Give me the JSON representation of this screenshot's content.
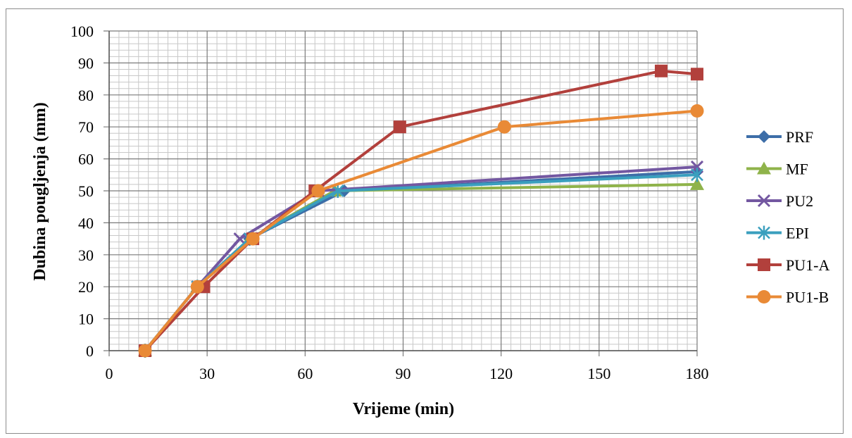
{
  "chart_data": {
    "type": "line",
    "xlabel": "Vrijeme (min)",
    "ylabel": "Dubina pougljenja (mm)",
    "xlim": [
      0,
      180
    ],
    "ylim": [
      0,
      100
    ],
    "xticks": [
      "0",
      "30",
      "60",
      "90",
      "120",
      "150",
      "180"
    ],
    "yticks": [
      "0",
      "10",
      "20",
      "30",
      "40",
      "50",
      "60",
      "70",
      "80",
      "90",
      "100"
    ],
    "grid": true,
    "legend_position": "right",
    "series": [
      {
        "name": "PRF",
        "color": "#3d6ea8",
        "marker": "diamond",
        "points": [
          [
            11,
            0
          ],
          [
            27,
            20
          ],
          [
            43,
            35
          ],
          [
            72,
            50
          ],
          [
            180,
            56
          ]
        ]
      },
      {
        "name": "MF",
        "color": "#8fb34a",
        "marker": "triangle",
        "points": [
          [
            11,
            0
          ],
          [
            27,
            20
          ],
          [
            43,
            35
          ],
          [
            69,
            50
          ],
          [
            180,
            52
          ]
        ]
      },
      {
        "name": "PU2",
        "color": "#7357a1",
        "marker": "x",
        "points": [
          [
            11,
            0
          ],
          [
            27,
            20
          ],
          [
            40,
            35
          ],
          [
            64,
            50
          ],
          [
            180,
            57.5
          ]
        ]
      },
      {
        "name": "EPI",
        "color": "#3a9fbe",
        "marker": "star",
        "points": [
          [
            11,
            0
          ],
          [
            27,
            20
          ],
          [
            43,
            35
          ],
          [
            70,
            50
          ],
          [
            180,
            55
          ]
        ]
      },
      {
        "name": "PU1-A",
        "color": "#b2403c",
        "marker": "square",
        "points": [
          [
            11,
            0
          ],
          [
            29,
            20
          ],
          [
            44,
            35
          ],
          [
            63,
            50
          ],
          [
            89,
            70
          ],
          [
            169,
            87.5
          ],
          [
            180,
            86.5
          ]
        ]
      },
      {
        "name": "PU1-B",
        "color": "#e98a36",
        "marker": "circle",
        "points": [
          [
            11,
            0
          ],
          [
            27,
            20
          ],
          [
            44,
            35
          ],
          [
            64,
            50
          ],
          [
            121,
            70
          ],
          [
            180,
            75
          ]
        ]
      }
    ]
  }
}
